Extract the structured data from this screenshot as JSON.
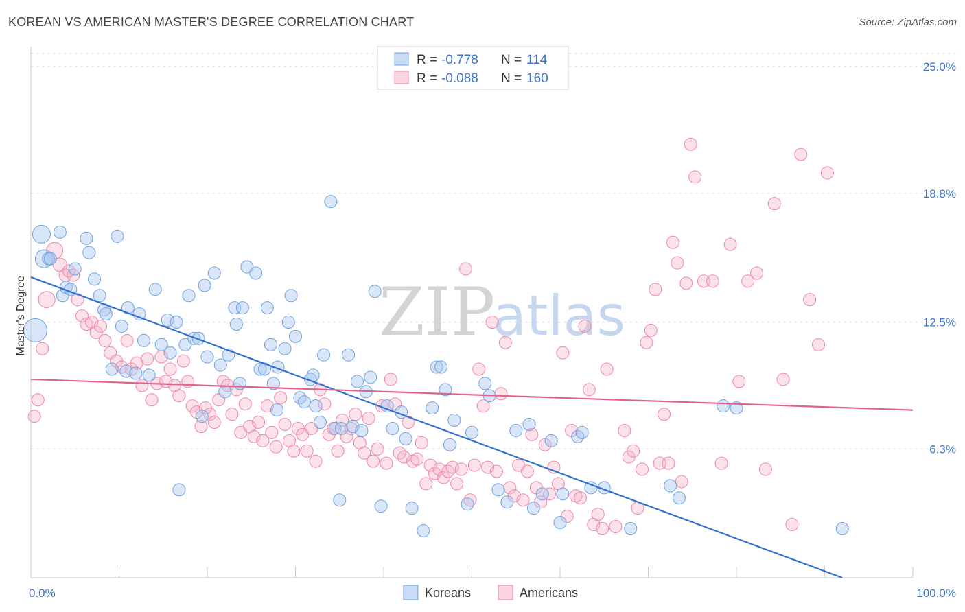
{
  "title": "KOREAN VS AMERICAN MASTER'S DEGREE CORRELATION CHART",
  "source": "Source: ZipAtlas.com",
  "watermark": {
    "zip": "ZIP",
    "atlas": "atlas"
  },
  "legend": {
    "rows": [
      {
        "r_label": "R =",
        "r_value": "-0.778",
        "n_label": "N =",
        "n_value": "114",
        "color": "#a9c7f0"
      },
      {
        "r_label": "R =",
        "r_value": "-0.088",
        "n_label": "N =",
        "n_value": "160",
        "color": "#f5b4c8"
      }
    ]
  },
  "bottom_legend": [
    {
      "label": "Koreans",
      "color": "#a9c7f0"
    },
    {
      "label": "Americans",
      "color": "#f5b4c8"
    }
  ],
  "chart_data": {
    "type": "scatter",
    "xlabel": "",
    "ylabel": "Master's Degree",
    "xlim": [
      0,
      100
    ],
    "ylim": [
      0,
      25
    ],
    "x_tick_labels": [
      {
        "value": 0,
        "label": "0.0%"
      },
      {
        "value": 100,
        "label": "100.0%"
      }
    ],
    "y_tick_labels": [
      {
        "value": 6.3,
        "label": "6.3%"
      },
      {
        "value": 12.5,
        "label": "12.5%"
      },
      {
        "value": 18.8,
        "label": "18.8%"
      },
      {
        "value": 25.0,
        "label": "25.0%"
      }
    ],
    "grid": true,
    "legend_position": "top-center",
    "series": [
      {
        "name": "Koreans",
        "color": "#6fa0e0",
        "trend": {
          "x": [
            0,
            92
          ],
          "y": [
            14.7,
            0
          ]
        },
        "points": [
          [
            0.5,
            12.1
          ],
          [
            1.2,
            16.8
          ],
          [
            1.5,
            15.6
          ],
          [
            2.0,
            15.6
          ],
          [
            2.2,
            15.6
          ],
          [
            3.3,
            16.9
          ],
          [
            3.6,
            13.8
          ],
          [
            4.0,
            14.2
          ],
          [
            4.5,
            14.1
          ],
          [
            5.0,
            15.1
          ],
          [
            6.3,
            16.6
          ],
          [
            6.6,
            15.9
          ],
          [
            7.2,
            14.6
          ],
          [
            7.8,
            13.8
          ],
          [
            8.3,
            13.1
          ],
          [
            8.5,
            12.9
          ],
          [
            9.2,
            10.2
          ],
          [
            9.8,
            16.7
          ],
          [
            10.3,
            12.3
          ],
          [
            10.8,
            10.1
          ],
          [
            11.0,
            13.2
          ],
          [
            11.9,
            10.0
          ],
          [
            12.3,
            12.9
          ],
          [
            12.8,
            11.6
          ],
          [
            13.4,
            9.9
          ],
          [
            14.1,
            14.1
          ],
          [
            14.8,
            11.4
          ],
          [
            15.5,
            12.6
          ],
          [
            15.8,
            11.0
          ],
          [
            16.5,
            12.5
          ],
          [
            16.8,
            4.3
          ],
          [
            17.5,
            11.4
          ],
          [
            17.9,
            13.8
          ],
          [
            18.5,
            11.7
          ],
          [
            19.0,
            11.7
          ],
          [
            19.4,
            7.9
          ],
          [
            19.7,
            14.3
          ],
          [
            20.0,
            10.8
          ],
          [
            20.8,
            14.9
          ],
          [
            21.5,
            10.4
          ],
          [
            22.0,
            9.1
          ],
          [
            22.4,
            10.9
          ],
          [
            23.1,
            13.2
          ],
          [
            23.3,
            12.4
          ],
          [
            23.7,
            9.5
          ],
          [
            24.0,
            13.2
          ],
          [
            24.5,
            15.2
          ],
          [
            25.5,
            14.9
          ],
          [
            26.0,
            10.2
          ],
          [
            26.5,
            10.2
          ],
          [
            26.8,
            13.2
          ],
          [
            27.2,
            11.4
          ],
          [
            27.5,
            9.5
          ],
          [
            27.9,
            8.2
          ],
          [
            28.0,
            10.3
          ],
          [
            28.8,
            11.2
          ],
          [
            29.2,
            12.5
          ],
          [
            29.5,
            13.8
          ],
          [
            30.0,
            11.8
          ],
          [
            30.5,
            8.8
          ],
          [
            31.0,
            8.6
          ],
          [
            31.7,
            9.7
          ],
          [
            32.0,
            9.9
          ],
          [
            32.3,
            8.4
          ],
          [
            32.8,
            7.6
          ],
          [
            33.2,
            10.9
          ],
          [
            34.0,
            18.4
          ],
          [
            34.5,
            7.3
          ],
          [
            35.0,
            3.8
          ],
          [
            35.2,
            7.3
          ],
          [
            36.0,
            10.9
          ],
          [
            36.5,
            7.4
          ],
          [
            37.0,
            9.6
          ],
          [
            37.5,
            7.2
          ],
          [
            38.0,
            9.1
          ],
          [
            38.5,
            9.8
          ],
          [
            39.0,
            14.0
          ],
          [
            39.7,
            3.5
          ],
          [
            40.4,
            8.4
          ],
          [
            41.0,
            7.3
          ],
          [
            42.0,
            8.1
          ],
          [
            42.5,
            6.8
          ],
          [
            43.2,
            3.4
          ],
          [
            44.5,
            2.3
          ],
          [
            45.5,
            8.3
          ],
          [
            46.0,
            10.3
          ],
          [
            46.5,
            10.3
          ],
          [
            47.0,
            9.2
          ],
          [
            47.5,
            6.5
          ],
          [
            48.0,
            7.7
          ],
          [
            49.5,
            3.6
          ],
          [
            50.0,
            7.1
          ],
          [
            51.5,
            9.5
          ],
          [
            52.0,
            8.9
          ],
          [
            53.0,
            4.3
          ],
          [
            54.0,
            3.7
          ],
          [
            55.0,
            7.2
          ],
          [
            56.5,
            7.5
          ],
          [
            57.0,
            3.4
          ],
          [
            58.0,
            4.1
          ],
          [
            59.0,
            6.7
          ],
          [
            60.0,
            2.7
          ],
          [
            60.3,
            4.1
          ],
          [
            62.0,
            6.9
          ],
          [
            62.5,
            7.1
          ],
          [
            63.5,
            4.4
          ],
          [
            65.0,
            4.4
          ],
          [
            68.0,
            2.4
          ],
          [
            72.5,
            4.5
          ],
          [
            73.5,
            3.9
          ],
          [
            78.5,
            8.4
          ],
          [
            80.0,
            8.3
          ],
          [
            92.0,
            2.4
          ]
        ]
      },
      {
        "name": "Americans",
        "color": "#ee85a6",
        "trend": {
          "x": [
            0,
            100
          ],
          "y": [
            9.7,
            8.2
          ]
        },
        "points": [
          [
            0.4,
            7.9
          ],
          [
            0.8,
            8.7
          ],
          [
            1.3,
            11.2
          ],
          [
            1.8,
            13.6
          ],
          [
            2.7,
            16.0
          ],
          [
            3.3,
            15.3
          ],
          [
            3.9,
            14.8
          ],
          [
            4.3,
            15.0
          ],
          [
            4.8,
            14.8
          ],
          [
            5.3,
            13.6
          ],
          [
            5.8,
            12.8
          ],
          [
            6.3,
            12.4
          ],
          [
            6.9,
            12.5
          ],
          [
            7.4,
            12.0
          ],
          [
            7.9,
            12.3
          ],
          [
            8.4,
            11.6
          ],
          [
            9.0,
            11.0
          ],
          [
            9.7,
            10.6
          ],
          [
            10.3,
            10.3
          ],
          [
            10.9,
            11.6
          ],
          [
            11.4,
            10.2
          ],
          [
            12.0,
            10.5
          ],
          [
            12.6,
            9.4
          ],
          [
            13.2,
            10.7
          ],
          [
            13.7,
            8.7
          ],
          [
            14.3,
            9.5
          ],
          [
            14.8,
            10.8
          ],
          [
            15.3,
            9.6
          ],
          [
            15.8,
            10.2
          ],
          [
            16.3,
            9.4
          ],
          [
            16.8,
            8.9
          ],
          [
            17.3,
            10.6
          ],
          [
            17.8,
            9.6
          ],
          [
            18.3,
            8.4
          ],
          [
            18.8,
            8.1
          ],
          [
            19.3,
            7.4
          ],
          [
            19.8,
            8.3
          ],
          [
            20.3,
            8.0
          ],
          [
            20.8,
            7.6
          ],
          [
            21.3,
            8.7
          ],
          [
            21.8,
            9.6
          ],
          [
            22.3,
            9.4
          ],
          [
            22.8,
            8.0
          ],
          [
            23.3,
            9.2
          ],
          [
            23.8,
            7.1
          ],
          [
            24.3,
            8.5
          ],
          [
            24.8,
            7.4
          ],
          [
            25.3,
            6.9
          ],
          [
            25.8,
            7.6
          ],
          [
            26.3,
            6.7
          ],
          [
            26.8,
            8.4
          ],
          [
            27.3,
            7.1
          ],
          [
            27.8,
            6.4
          ],
          [
            28.3,
            8.8
          ],
          [
            28.8,
            7.5
          ],
          [
            29.3,
            6.7
          ],
          [
            29.8,
            6.2
          ],
          [
            30.3,
            7.3
          ],
          [
            30.8,
            7.0
          ],
          [
            31.3,
            6.2
          ],
          [
            31.8,
            7.3
          ],
          [
            32.3,
            5.7
          ],
          [
            32.8,
            9.2
          ],
          [
            33.3,
            8.5
          ],
          [
            33.8,
            7.0
          ],
          [
            34.3,
            7.3
          ],
          [
            34.8,
            6.2
          ],
          [
            35.3,
            7.7
          ],
          [
            35.8,
            6.9
          ],
          [
            36.3,
            7.3
          ],
          [
            36.8,
            8.0
          ],
          [
            37.3,
            6.6
          ],
          [
            37.8,
            6.1
          ],
          [
            38.3,
            7.8
          ],
          [
            38.8,
            5.7
          ],
          [
            39.3,
            6.3
          ],
          [
            39.8,
            8.4
          ],
          [
            40.3,
            5.6
          ],
          [
            40.8,
            9.7
          ],
          [
            41.3,
            8.5
          ],
          [
            41.8,
            6.1
          ],
          [
            42.3,
            5.9
          ],
          [
            42.8,
            7.6
          ],
          [
            43.3,
            5.7
          ],
          [
            43.8,
            5.8
          ],
          [
            44.3,
            6.6
          ],
          [
            44.8,
            4.6
          ],
          [
            45.3,
            5.5
          ],
          [
            45.8,
            5.1
          ],
          [
            46.3,
            5.3
          ],
          [
            46.8,
            4.9
          ],
          [
            47.3,
            5.2
          ],
          [
            47.8,
            5.4
          ],
          [
            48.3,
            4.6
          ],
          [
            48.8,
            5.3
          ],
          [
            49.3,
            15.1
          ],
          [
            49.8,
            3.8
          ],
          [
            50.3,
            5.5
          ],
          [
            50.8,
            10.2
          ],
          [
            51.3,
            8.4
          ],
          [
            51.8,
            5.4
          ],
          [
            52.3,
            12.5
          ],
          [
            52.8,
            5.2
          ],
          [
            53.3,
            9.0
          ],
          [
            53.8,
            11.5
          ],
          [
            54.3,
            4.4
          ],
          [
            54.8,
            4.0
          ],
          [
            55.3,
            5.5
          ],
          [
            55.8,
            3.8
          ],
          [
            56.3,
            5.2
          ],
          [
            56.8,
            7.0
          ],
          [
            57.3,
            4.4
          ],
          [
            57.8,
            3.7
          ],
          [
            58.3,
            6.5
          ],
          [
            58.8,
            4.1
          ],
          [
            59.3,
            5.4
          ],
          [
            59.8,
            4.6
          ],
          [
            60.3,
            11.0
          ],
          [
            60.8,
            3.0
          ],
          [
            61.3,
            7.2
          ],
          [
            61.8,
            4.0
          ],
          [
            62.3,
            3.9
          ],
          [
            62.8,
            12.3
          ],
          [
            63.3,
            9.2
          ],
          [
            63.8,
            2.6
          ],
          [
            64.3,
            3.1
          ],
          [
            64.8,
            2.4
          ],
          [
            65.3,
            10.2
          ],
          [
            66.3,
            2.5
          ],
          [
            67.3,
            7.2
          ],
          [
            67.8,
            5.9
          ],
          [
            68.3,
            6.2
          ],
          [
            68.8,
            3.4
          ],
          [
            69.3,
            5.3
          ],
          [
            69.8,
            11.5
          ],
          [
            70.3,
            12.1
          ],
          [
            70.8,
            14.1
          ],
          [
            71.3,
            5.6
          ],
          [
            71.8,
            8.0
          ],
          [
            72.3,
            5.6
          ],
          [
            72.8,
            16.4
          ],
          [
            73.3,
            15.4
          ],
          [
            73.8,
            4.7
          ],
          [
            74.3,
            14.4
          ],
          [
            74.8,
            21.2
          ],
          [
            75.3,
            19.6
          ],
          [
            76.3,
            14.5
          ],
          [
            77.3,
            14.5
          ],
          [
            78.3,
            5.6
          ],
          [
            79.3,
            16.3
          ],
          [
            80.3,
            9.6
          ],
          [
            81.3,
            14.5
          ],
          [
            82.3,
            14.9
          ],
          [
            83.3,
            5.3
          ],
          [
            84.3,
            18.3
          ],
          [
            85.3,
            9.7
          ],
          [
            86.3,
            2.6
          ],
          [
            87.3,
            20.7
          ],
          [
            88.3,
            13.6
          ],
          [
            89.3,
            11.4
          ],
          [
            90.3,
            19.8
          ]
        ]
      }
    ]
  }
}
